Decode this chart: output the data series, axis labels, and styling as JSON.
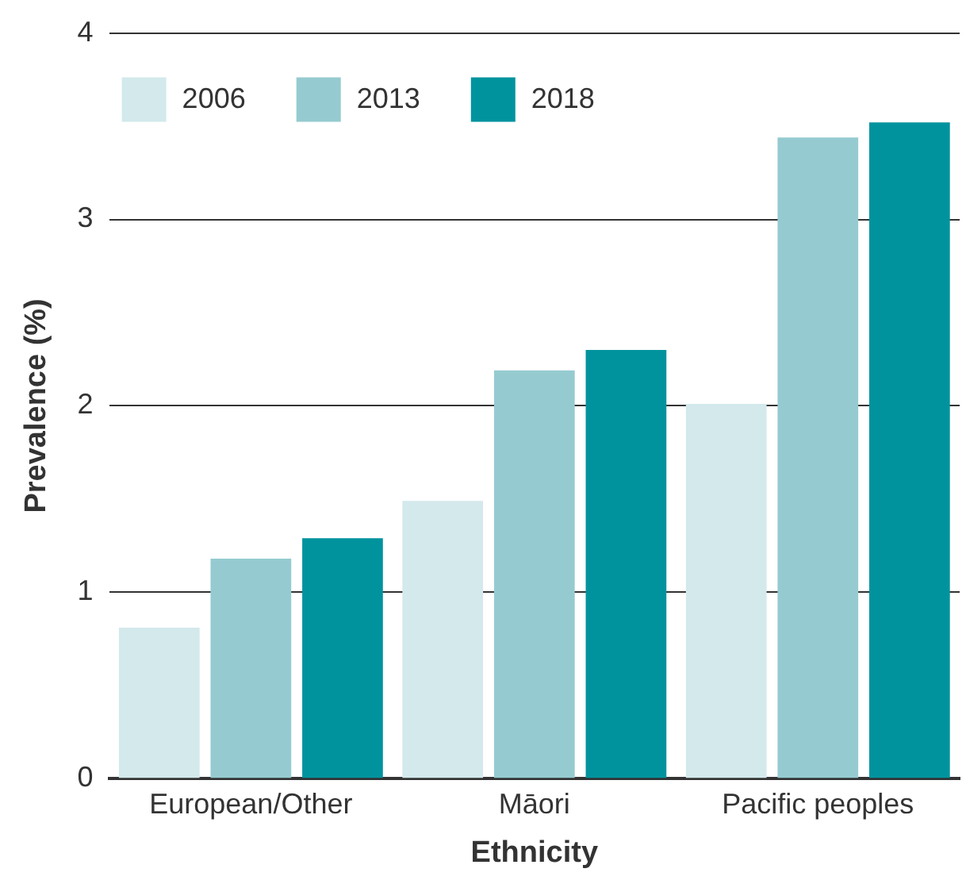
{
  "chart_data": {
    "type": "bar",
    "xlabel": "Ethnicity",
    "ylabel": "Prevalence (%)",
    "categories": [
      "European/Other",
      "Māori",
      "Pacific peoples"
    ],
    "series": [
      {
        "name": "2006",
        "color": "#d3e9ec",
        "values": [
          0.81,
          1.49,
          2.01
        ]
      },
      {
        "name": "2013",
        "color": "#95cbd0",
        "values": [
          1.18,
          2.19,
          3.44
        ]
      },
      {
        "name": "2018",
        "color": "#00939e",
        "values": [
          1.29,
          2.3,
          3.52
        ]
      }
    ],
    "ylim": [
      0,
      4
    ],
    "yticks": [
      0,
      1,
      2,
      3,
      4
    ],
    "grid": "y",
    "legend": "top left"
  }
}
